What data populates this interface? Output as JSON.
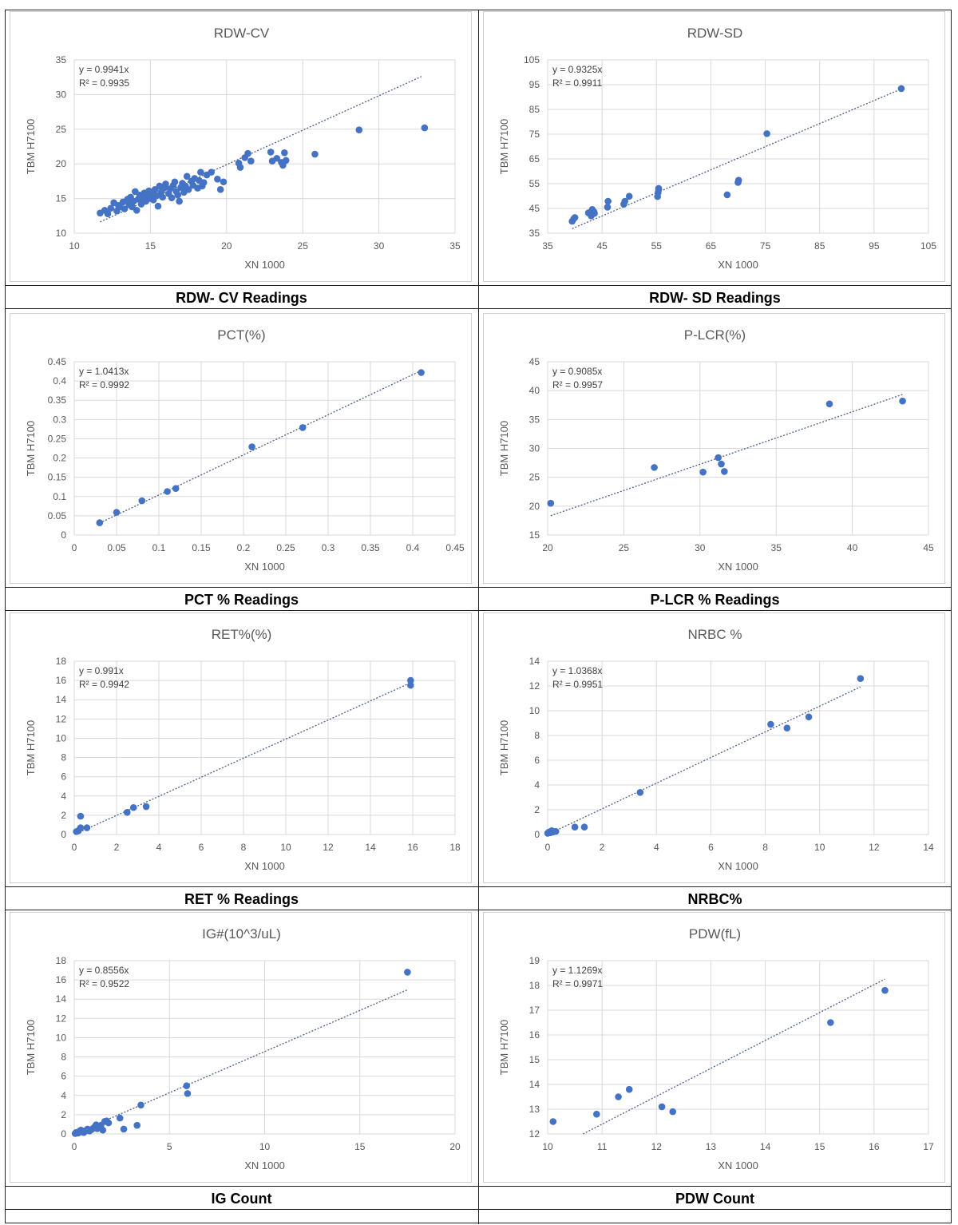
{
  "chart_data": [
    {
      "type": "scatter",
      "title": "RDW-CV",
      "caption": "RDW- CV Readings",
      "xlabel": "XN 1000",
      "ylabel": "TBM H7100",
      "xlim": [
        10,
        35
      ],
      "ylim": [
        10,
        35
      ],
      "xticks": [
        10,
        15,
        20,
        25,
        30,
        35
      ],
      "yticks": [
        10,
        15,
        20,
        25,
        30,
        35
      ],
      "xtick_labels": [
        "10",
        "15",
        "20",
        "25",
        "30",
        "35"
      ],
      "ytick_labels": [
        "10",
        "15",
        "20",
        "25",
        "30",
        "35"
      ],
      "equation": "y = 0.9941x",
      "r2": "R² = 0.9935",
      "slope": 0.9941,
      "trend_range": [
        11.7,
        32.8
      ],
      "points": [
        [
          11.7,
          12.9
        ],
        [
          12.0,
          13.3
        ],
        [
          12.2,
          12.8
        ],
        [
          12.4,
          13.6
        ],
        [
          12.6,
          14.4
        ],
        [
          12.8,
          13.2
        ],
        [
          12.9,
          14.0
        ],
        [
          13.0,
          13.8
        ],
        [
          13.2,
          14.5
        ],
        [
          13.3,
          13.5
        ],
        [
          13.5,
          14.9
        ],
        [
          13.6,
          14.1
        ],
        [
          13.7,
          15.2
        ],
        [
          13.8,
          13.8
        ],
        [
          13.9,
          14.6
        ],
        [
          14.0,
          16.0
        ],
        [
          14.1,
          13.3
        ],
        [
          14.2,
          14.9
        ],
        [
          14.3,
          15.5
        ],
        [
          14.4,
          14.2
        ],
        [
          14.5,
          15.0
        ],
        [
          14.6,
          15.8
        ],
        [
          14.7,
          14.6
        ],
        [
          14.8,
          15.3
        ],
        [
          14.9,
          16.1
        ],
        [
          15.0,
          15.0
        ],
        [
          15.1,
          15.6
        ],
        [
          15.2,
          14.8
        ],
        [
          15.3,
          16.3
        ],
        [
          15.4,
          15.4
        ],
        [
          15.5,
          13.9
        ],
        [
          15.6,
          16.8
        ],
        [
          15.7,
          15.9
        ],
        [
          15.8,
          15.2
        ],
        [
          15.9,
          16.5
        ],
        [
          16.0,
          17.1
        ],
        [
          16.2,
          15.7
        ],
        [
          16.3,
          16.4
        ],
        [
          16.4,
          15.1
        ],
        [
          16.5,
          16.9
        ],
        [
          16.6,
          17.4
        ],
        [
          16.7,
          16.0
        ],
        [
          16.8,
          15.5
        ],
        [
          16.9,
          14.6
        ],
        [
          17.0,
          16.6
        ],
        [
          17.1,
          17.2
        ],
        [
          17.2,
          15.9
        ],
        [
          17.3,
          16.8
        ],
        [
          17.4,
          18.2
        ],
        [
          17.5,
          16.3
        ],
        [
          17.7,
          17.5
        ],
        [
          17.8,
          16.9
        ],
        [
          17.9,
          17.9
        ],
        [
          18.1,
          16.5
        ],
        [
          18.2,
          17.6
        ],
        [
          18.3,
          18.8
        ],
        [
          18.4,
          16.8
        ],
        [
          18.5,
          17.3
        ],
        [
          18.7,
          18.4
        ],
        [
          19.0,
          18.8
        ],
        [
          19.4,
          17.8
        ],
        [
          19.6,
          16.3
        ],
        [
          19.8,
          17.4
        ],
        [
          20.8,
          20.1
        ],
        [
          20.9,
          19.5
        ],
        [
          21.2,
          20.9
        ],
        [
          21.4,
          21.5
        ],
        [
          21.6,
          20.4
        ],
        [
          22.9,
          21.7
        ],
        [
          23.0,
          20.4
        ],
        [
          23.3,
          20.8
        ],
        [
          23.6,
          20.2
        ],
        [
          23.7,
          19.8
        ],
        [
          23.8,
          21.6
        ],
        [
          23.9,
          20.5
        ],
        [
          25.8,
          21.4
        ],
        [
          28.7,
          24.9
        ],
        [
          33.0,
          25.2
        ]
      ]
    },
    {
      "type": "scatter",
      "title": "RDW-SD",
      "caption": "RDW- SD Readings",
      "xlabel": "XN 1000",
      "ylabel": "TBM H7100",
      "xlim": [
        35,
        105
      ],
      "ylim": [
        35,
        105
      ],
      "xticks": [
        35,
        45,
        55,
        65,
        75,
        85,
        95,
        105
      ],
      "yticks": [
        35,
        45,
        55,
        65,
        75,
        85,
        95,
        105
      ],
      "xtick_labels": [
        "35",
        "45",
        "55",
        "65",
        "75",
        "85",
        "95",
        "105"
      ],
      "ytick_labels": [
        "35",
        "45",
        "55",
        "65",
        "75",
        "85",
        "95",
        "105"
      ],
      "equation": "y = 0.9325x",
      "r2": "R² = 0.9911",
      "slope": 0.9325,
      "trend_range": [
        39.5,
        100
      ],
      "points": [
        [
          39.5,
          39.8
        ],
        [
          39.8,
          40.8
        ],
        [
          40.0,
          41.3
        ],
        [
          42.5,
          43.2
        ],
        [
          43.0,
          42.0
        ],
        [
          43.2,
          44.6
        ],
        [
          43.5,
          43.7
        ],
        [
          43.6,
          43.0
        ],
        [
          46.0,
          45.5
        ],
        [
          46.1,
          47.9
        ],
        [
          49.0,
          46.7
        ],
        [
          49.2,
          47.9
        ],
        [
          50.0,
          49.9
        ],
        [
          55.2,
          49.8
        ],
        [
          55.3,
          51.4
        ],
        [
          55.4,
          52.6
        ],
        [
          55.4,
          53.1
        ],
        [
          68.0,
          50.5
        ],
        [
          70.0,
          55.5
        ],
        [
          70.1,
          56.4
        ],
        [
          75.3,
          75.2
        ],
        [
          100.0,
          93.4
        ]
      ]
    },
    {
      "type": "scatter",
      "title": "PCT(%)",
      "caption": "PCT % Readings",
      "xlabel": "XN 1000",
      "ylabel": "TBM H7100",
      "xlim": [
        0,
        0.45
      ],
      "ylim": [
        0,
        0.45
      ],
      "xticks": [
        0,
        0.05,
        0.1,
        0.15,
        0.2,
        0.25,
        0.3,
        0.35,
        0.4,
        0.45
      ],
      "yticks": [
        0,
        0.05,
        0.1,
        0.15,
        0.2,
        0.25,
        0.3,
        0.35,
        0.4,
        0.45
      ],
      "xtick_labels": [
        "0",
        "0.05",
        "0.1",
        "0.15",
        "0.2",
        "0.25",
        "0.3",
        "0.35",
        "0.4",
        "0.45"
      ],
      "ytick_labels": [
        "0",
        "0.05",
        "0.1",
        "0.15",
        "0.2",
        "0.25",
        "0.3",
        "0.35",
        "0.4",
        "0.45"
      ],
      "equation": "y = 1.0413x",
      "r2": "R² = 0.9992",
      "slope": 1.0413,
      "trend_range": [
        0.03,
        0.41
      ],
      "points": [
        [
          0.03,
          0.032
        ],
        [
          0.05,
          0.059
        ],
        [
          0.08,
          0.089
        ],
        [
          0.11,
          0.113
        ],
        [
          0.12,
          0.121
        ],
        [
          0.21,
          0.229
        ],
        [
          0.27,
          0.279
        ],
        [
          0.41,
          0.422
        ]
      ]
    },
    {
      "type": "scatter",
      "title": "P-LCR(%)",
      "caption": "P-LCR % Readings",
      "xlabel": "XN 1000",
      "ylabel": "TBM H7100",
      "xlim": [
        20,
        45
      ],
      "ylim": [
        15,
        45
      ],
      "xticks": [
        20,
        25,
        30,
        35,
        40,
        45
      ],
      "yticks": [
        15,
        20,
        25,
        30,
        35,
        40,
        45
      ],
      "xtick_labels": [
        "20",
        "25",
        "30",
        "35",
        "40",
        "45"
      ],
      "ytick_labels": [
        "15",
        "20",
        "25",
        "30",
        "35",
        "40",
        "45"
      ],
      "equation": "y = 0.9085x",
      "r2": "R² = 0.9957",
      "slope": 0.9085,
      "trend_range": [
        20.2,
        43.3
      ],
      "points": [
        [
          20.2,
          20.5
        ],
        [
          27.0,
          26.7
        ],
        [
          30.2,
          25.9
        ],
        [
          31.2,
          28.4
        ],
        [
          31.4,
          27.3
        ],
        [
          31.6,
          26.0
        ],
        [
          38.5,
          37.7
        ],
        [
          43.3,
          38.2
        ]
      ]
    },
    {
      "type": "scatter",
      "title": "RET%(%)",
      "caption": "RET % Readings",
      "xlabel": "XN 1000",
      "ylabel": "TBM H7100",
      "xlim": [
        0,
        18
      ],
      "ylim": [
        0,
        18
      ],
      "xticks": [
        0,
        2,
        4,
        6,
        8,
        10,
        12,
        14,
        16,
        18
      ],
      "yticks": [
        0,
        2,
        4,
        6,
        8,
        10,
        12,
        14,
        16,
        18
      ],
      "xtick_labels": [
        "0",
        "2",
        "4",
        "6",
        "8",
        "10",
        "12",
        "14",
        "16",
        "18"
      ],
      "ytick_labels": [
        "0",
        "2",
        "4",
        "6",
        "8",
        "10",
        "12",
        "14",
        "16",
        "18"
      ],
      "equation": "y = 0.991x",
      "r2": "R² = 0.9942",
      "slope": 0.991,
      "trend_range": [
        0.1,
        15.9
      ],
      "points": [
        [
          0.1,
          0.3
        ],
        [
          0.2,
          0.4
        ],
        [
          0.3,
          0.7
        ],
        [
          0.3,
          1.9
        ],
        [
          0.6,
          0.7
        ],
        [
          2.5,
          2.3
        ],
        [
          2.8,
          2.8
        ],
        [
          3.4,
          2.9
        ],
        [
          15.9,
          16.0
        ],
        [
          15.9,
          15.5
        ]
      ]
    },
    {
      "type": "scatter",
      "title": "NRBC %",
      "caption": "NRBC%",
      "xlabel": "XN 1000",
      "ylabel": "TBM H7100",
      "xlim": [
        0,
        14
      ],
      "ylim": [
        0,
        14
      ],
      "xticks": [
        0,
        2,
        4,
        6,
        8,
        10,
        12,
        14
      ],
      "yticks": [
        0,
        2,
        4,
        6,
        8,
        10,
        12,
        14
      ],
      "xtick_labels": [
        "0",
        "2",
        "4",
        "6",
        "8",
        "10",
        "12",
        "14"
      ],
      "ytick_labels": [
        "0",
        "2",
        "4",
        "6",
        "8",
        "10",
        "12",
        "14"
      ],
      "equation": "y = 1.0368x",
      "r2": "R² = 0.9951",
      "slope": 1.0368,
      "trend_range": [
        0,
        11.5
      ],
      "points": [
        [
          0.0,
          0.1
        ],
        [
          0.05,
          0.2
        ],
        [
          0.1,
          0.15
        ],
        [
          0.15,
          0.3
        ],
        [
          0.2,
          0.2
        ],
        [
          0.3,
          0.25
        ],
        [
          1.0,
          0.6
        ],
        [
          1.35,
          0.6
        ],
        [
          3.4,
          3.4
        ],
        [
          8.2,
          8.9
        ],
        [
          8.8,
          8.6
        ],
        [
          9.6,
          9.5
        ],
        [
          11.5,
          12.6
        ]
      ]
    },
    {
      "type": "scatter",
      "title": "IG#(10^3/uL)",
      "caption": "IG Count",
      "xlabel": "XN 1000",
      "ylabel": "TBM H7100",
      "xlim": [
        0,
        20
      ],
      "ylim": [
        0,
        18
      ],
      "xticks": [
        0,
        5,
        10,
        15,
        20
      ],
      "yticks": [
        0,
        2,
        4,
        6,
        8,
        10,
        12,
        14,
        16,
        18
      ],
      "xtick_labels": [
        "0",
        "5",
        "10",
        "15",
        "20"
      ],
      "ytick_labels": [
        "0",
        "2",
        "4",
        "6",
        "8",
        "10",
        "12",
        "14",
        "16",
        "18"
      ],
      "equation": "y = 0.8556x",
      "r2": "R² = 0.9522",
      "slope": 0.8556,
      "trend_range": [
        0,
        17.5
      ],
      "points": [
        [
          0.05,
          0.05
        ],
        [
          0.1,
          0.15
        ],
        [
          0.2,
          0.1
        ],
        [
          0.25,
          0.25
        ],
        [
          0.3,
          0.2
        ],
        [
          0.35,
          0.4
        ],
        [
          0.45,
          0.3
        ],
        [
          0.5,
          0.15
        ],
        [
          0.6,
          0.35
        ],
        [
          0.7,
          0.5
        ],
        [
          0.8,
          0.3
        ],
        [
          0.9,
          0.45
        ],
        [
          1.0,
          0.6
        ],
        [
          1.1,
          0.8
        ],
        [
          1.15,
          0.95
        ],
        [
          1.2,
          0.55
        ],
        [
          1.3,
          0.7
        ],
        [
          1.4,
          0.9
        ],
        [
          1.5,
          0.4
        ],
        [
          1.6,
          1.3
        ],
        [
          1.7,
          1.35
        ],
        [
          1.8,
          1.15
        ],
        [
          2.4,
          1.65
        ],
        [
          2.6,
          0.5
        ],
        [
          3.3,
          0.9
        ],
        [
          3.5,
          3.0
        ],
        [
          5.9,
          5.0
        ],
        [
          5.95,
          4.2
        ],
        [
          17.5,
          16.8
        ]
      ]
    },
    {
      "type": "scatter",
      "title": "PDW(fL)",
      "caption": "PDW Count",
      "xlabel": "XN 1000",
      "ylabel": "TBM H7100",
      "xlim": [
        10,
        17
      ],
      "ylim": [
        12,
        19
      ],
      "xticks": [
        10,
        11,
        12,
        13,
        14,
        15,
        16,
        17
      ],
      "yticks": [
        12,
        13,
        14,
        15,
        16,
        17,
        18,
        19
      ],
      "xtick_labels": [
        "10",
        "11",
        "12",
        "13",
        "14",
        "15",
        "16",
        "17"
      ],
      "ytick_labels": [
        "12",
        "13",
        "14",
        "15",
        "16",
        "17",
        "18",
        "19"
      ],
      "equation": "y = 1.1269x",
      "r2": "R² = 0.9971",
      "slope": 1.1269,
      "trend_range": [
        10.65,
        16.2
      ],
      "points": [
        [
          10.1,
          12.5
        ],
        [
          10.9,
          12.8
        ],
        [
          11.3,
          13.5
        ],
        [
          11.5,
          13.8
        ],
        [
          12.1,
          13.1
        ],
        [
          12.3,
          12.9
        ],
        [
          15.2,
          16.5
        ],
        [
          16.2,
          17.8
        ]
      ]
    }
  ],
  "colors": {
    "point": "#4472c4",
    "trend": "#4a5f8a",
    "grid": "#d9d9d9",
    "axis_text": "#595959",
    "title_text": "#595959"
  }
}
